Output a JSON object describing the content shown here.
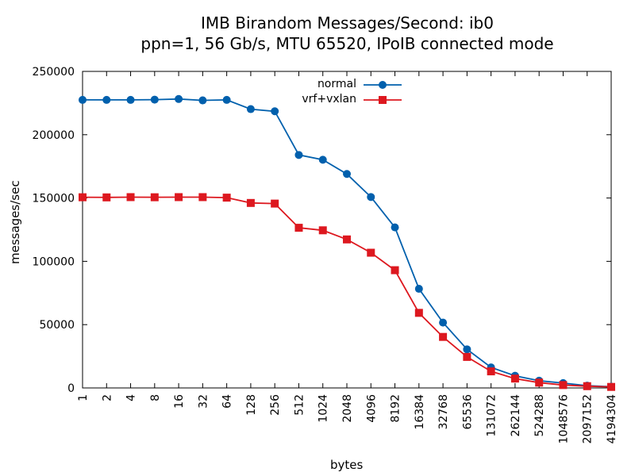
{
  "chart_data": {
    "type": "line",
    "title": "IMB Birandom Messages/Second: ib0",
    "subtitle": "ppn=1, 56 Gb/s, MTU 65520, IPoIB connected mode",
    "xlabel": "bytes",
    "ylabel": "messages/sec",
    "ylim": [
      0,
      250000
    ],
    "yticks": [
      "0",
      "50000",
      "100000",
      "150000",
      "200000",
      "250000"
    ],
    "categories": [
      "1",
      "2",
      "4",
      "8",
      "16",
      "32",
      "64",
      "128",
      "256",
      "512",
      "1024",
      "2048",
      "4096",
      "8192",
      "16384",
      "32768",
      "65536",
      "131072",
      "262144",
      "524288",
      "1048576",
      "2097152",
      "4194304"
    ],
    "grid": false,
    "legend_position": "top-center",
    "series": [
      {
        "name": "normal",
        "color": "#0060ad",
        "marker": "circle",
        "values": [
          227500,
          227500,
          227500,
          227700,
          228200,
          227100,
          227500,
          220200,
          218500,
          184000,
          180200,
          169000,
          150800,
          126800,
          78300,
          51600,
          30500,
          16200,
          9600,
          5700,
          3800,
          1800,
          1000
        ]
      },
      {
        "name": "vrf+vxlan",
        "color": "#dd181f",
        "marker": "square",
        "values": [
          150600,
          150500,
          150700,
          150600,
          150700,
          150700,
          150300,
          146100,
          145600,
          126500,
          124500,
          117300,
          106800,
          93000,
          59300,
          40300,
          24500,
          13100,
          7400,
          4200,
          2300,
          1400,
          800
        ]
      }
    ]
  }
}
